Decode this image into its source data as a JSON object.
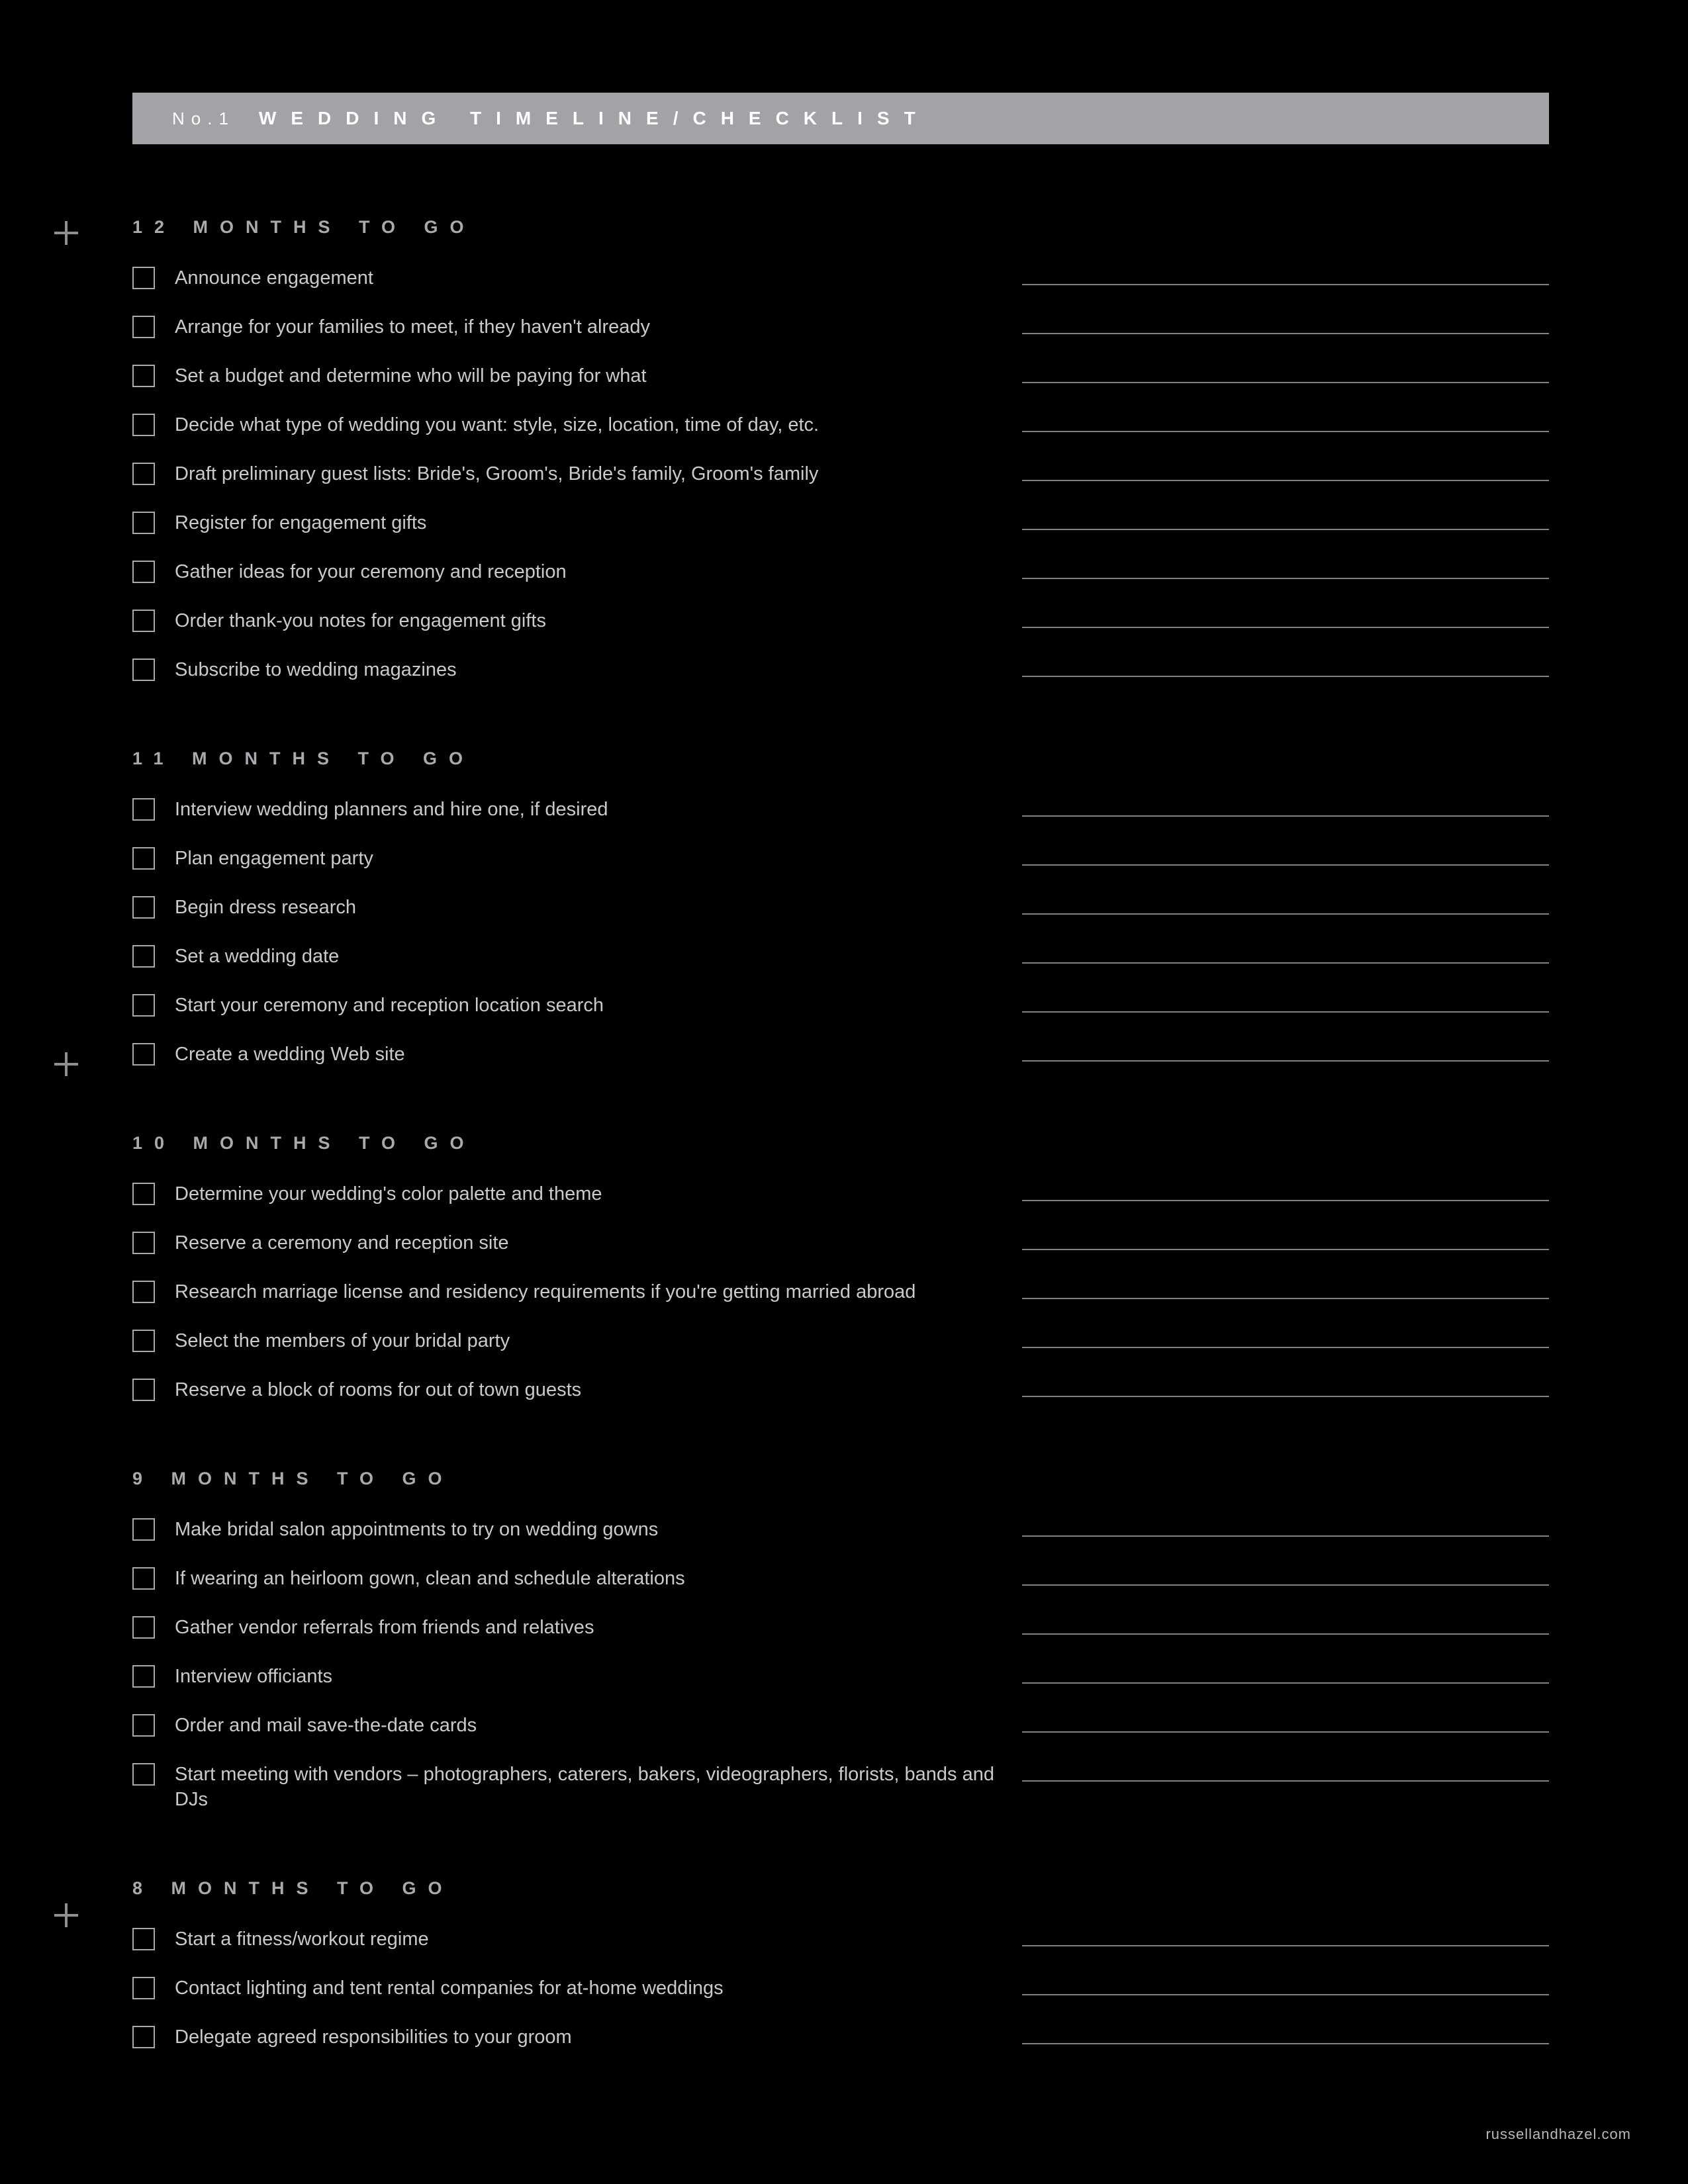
{
  "colors": {
    "background": "#000000",
    "title_bar_bg": "#a1a3a6",
    "title_text": "#ffffff",
    "heading_text": "#a8aaad",
    "item_text": "#c9cacb",
    "checkbox_border": "#a8aaad",
    "note_line": "#808285",
    "plus_icon": "#8e9093",
    "footer_text": "#b7b8ba"
  },
  "header": {
    "number": "No.1",
    "title": "WEDDING TIMELINE/CHECKLIST"
  },
  "plus_offsets": [
    330,
    1586,
    2872
  ],
  "sections": [
    {
      "heading": "12 MONTHS TO GO",
      "items": [
        "Announce engagement",
        "Arrange for your families to meet, if they haven't already",
        "Set a budget and determine who will be paying for what",
        "Decide what type of wedding you want: style, size, location, time of day, etc.",
        "Draft preliminary guest lists: Bride's, Groom's, Bride's family, Groom's family",
        "Register for engagement gifts",
        "Gather ideas for your ceremony and reception",
        "Order thank-you notes for engagement gifts",
        "Subscribe to wedding magazines"
      ]
    },
    {
      "heading": "11 MONTHS TO GO",
      "items": [
        "Interview wedding planners and hire one, if desired",
        "Plan engagement party",
        "Begin dress research",
        "Set a wedding date",
        "Start your ceremony and reception location search",
        "Create a wedding Web site"
      ]
    },
    {
      "heading": "10 MONTHS TO GO",
      "items": [
        "Determine your wedding's color palette and theme",
        "Reserve a ceremony and reception site",
        "Research marriage license and residency requirements if you're getting married abroad",
        "Select the members of your bridal party",
        "Reserve a block of rooms for out of town guests"
      ]
    },
    {
      "heading": "9 MONTHS TO GO",
      "items": [
        "Make bridal salon appointments to try on wedding gowns",
        "If wearing an heirloom gown, clean and schedule alterations",
        "Gather vendor referrals from friends and relatives",
        "Interview officiants",
        "Order and mail save-the-date cards",
        "Start meeting with vendors – photographers, caterers, bakers, videographers, florists, bands and DJs"
      ]
    },
    {
      "heading": "8 MONTHS TO GO",
      "items": [
        "Start a fitness/workout regime",
        "Contact lighting and tent rental companies for at-home weddings",
        "Delegate agreed responsibilities to your groom"
      ]
    }
  ],
  "footer": "russellandhazel.com"
}
